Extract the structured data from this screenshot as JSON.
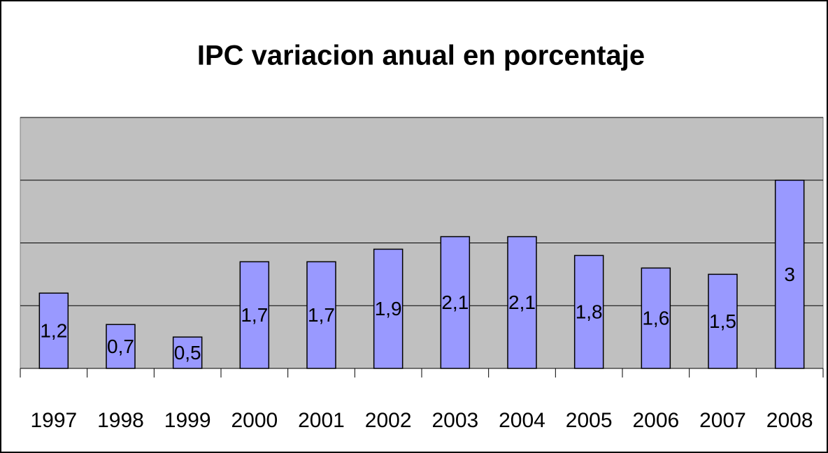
{
  "chart_data": {
    "type": "bar",
    "title": "IPC variacion anual en porcentaje",
    "categories": [
      "1997",
      "1998",
      "1999",
      "2000",
      "2001",
      "2002",
      "2003",
      "2004",
      "2005",
      "2006",
      "2007",
      "2008"
    ],
    "values": [
      1.2,
      0.7,
      0.5,
      1.7,
      1.7,
      1.9,
      2.1,
      2.1,
      1.8,
      1.6,
      1.5,
      3
    ],
    "value_labels": [
      "1,2",
      "0,7",
      "0,5",
      "1,7",
      "1,7",
      "1,9",
      "2,1",
      "2,1",
      "1,8",
      "1,6",
      "1,5",
      "3"
    ],
    "color": "#9999ff",
    "ylim": [
      0,
      4
    ],
    "yticks": [
      0,
      1,
      2,
      3,
      4
    ],
    "grid": true
  }
}
